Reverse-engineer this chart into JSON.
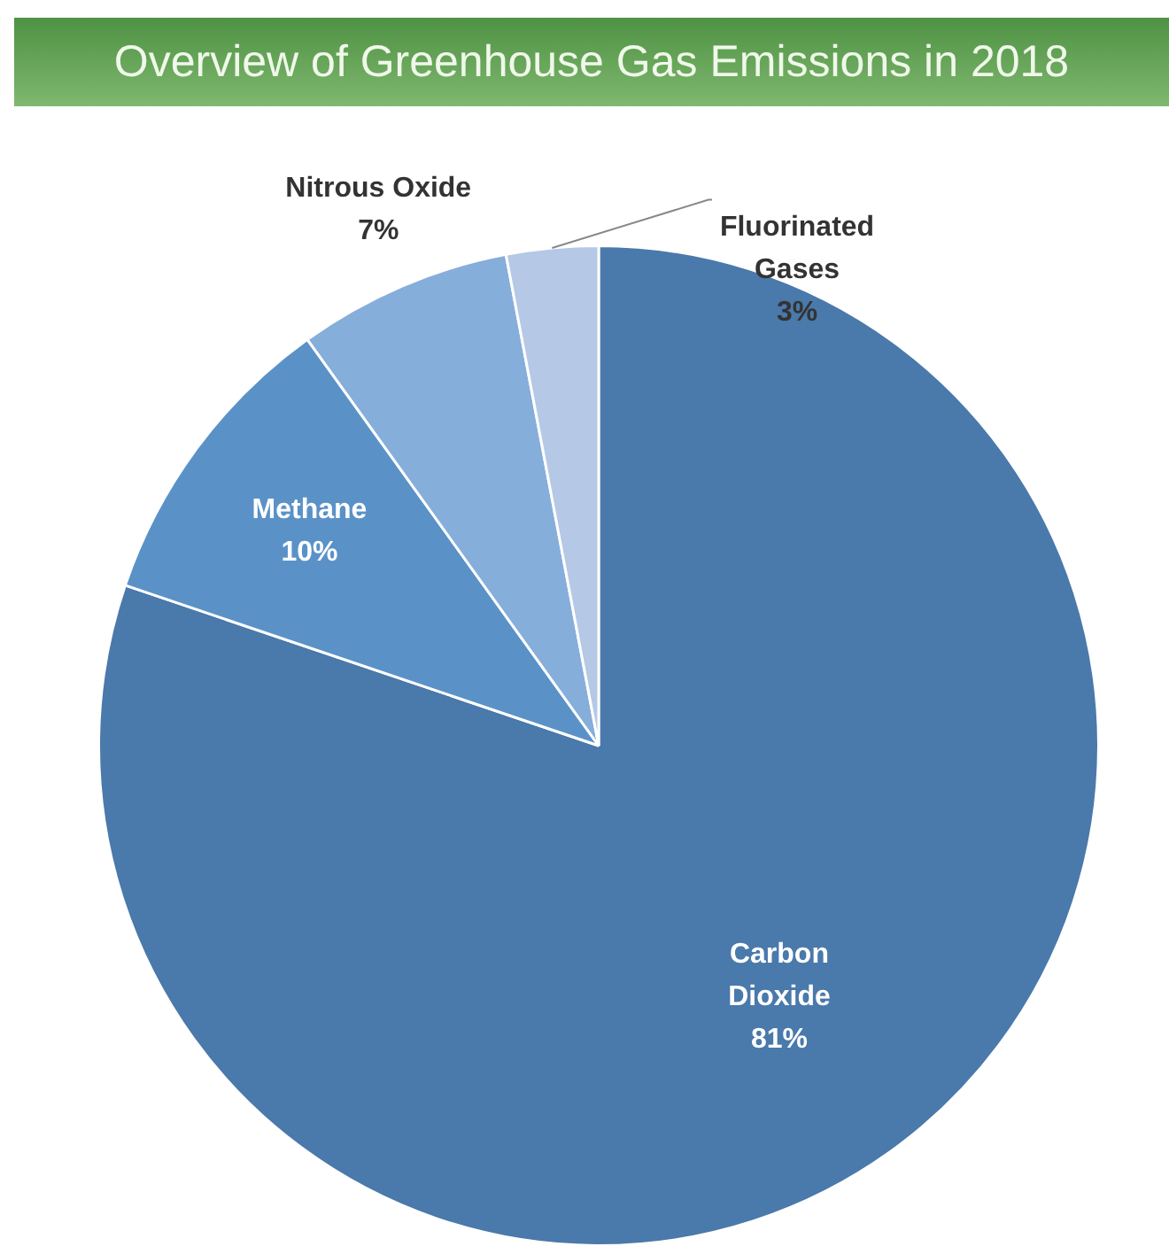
{
  "chart_data": {
    "type": "pie",
    "title": "Overview of Greenhouse Gas Emissions in 2018",
    "categories": [
      "Carbon Dioxide",
      "Methane",
      "Nitrous Oxide",
      "Fluorinated Gases"
    ],
    "values": [
      81,
      10,
      7,
      3
    ],
    "value_labels": [
      "81%",
      "10%",
      "7%",
      "3%"
    ],
    "colors": [
      "#4a79ab",
      "#5a92c8",
      "#86aedb",
      "#b5c8e6"
    ],
    "legend": false
  }
}
